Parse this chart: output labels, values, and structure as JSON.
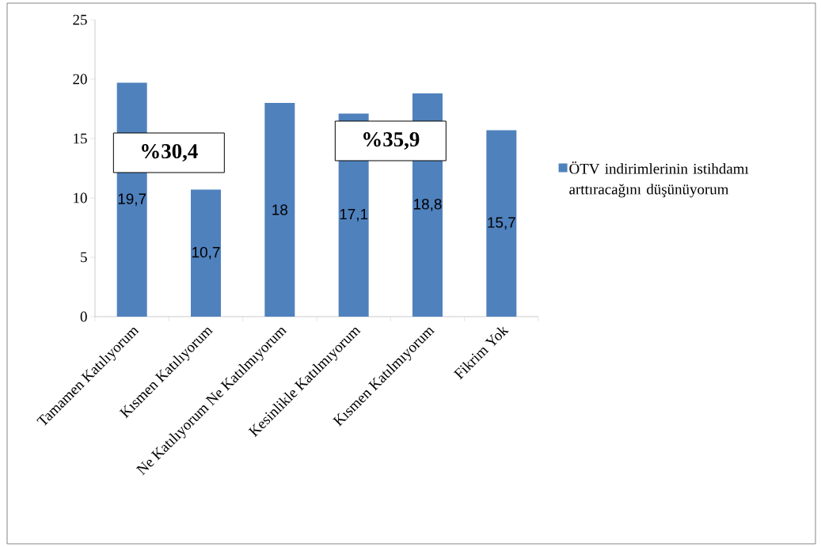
{
  "chart_data": {
    "type": "bar",
    "categories": [
      "Tamamen Katılıyorum",
      "Kısmen Katılıyorum",
      "Ne Katılıyorum Ne Katılmıyorum",
      "Kesinlikle Katılmıyorum",
      "Kısmen Katılmıyorum",
      "Fikrim Yok"
    ],
    "series": [
      {
        "name": "ÖTV indirimlerinin istihdamı arttıracağını düşünüyorum",
        "color": "#4f81bd",
        "values": [
          19.7,
          10.7,
          18,
          17.1,
          18.8,
          15.7
        ]
      }
    ],
    "value_labels": [
      "19,7",
      "10,7",
      "18",
      "17,1",
      "18,8",
      "15,7"
    ],
    "annotations": [
      "%30,4",
      "%35,9"
    ],
    "ylim": [
      0,
      25
    ],
    "yticks": [
      0,
      5,
      10,
      15,
      20,
      25
    ],
    "grid": false,
    "legend": "right"
  }
}
